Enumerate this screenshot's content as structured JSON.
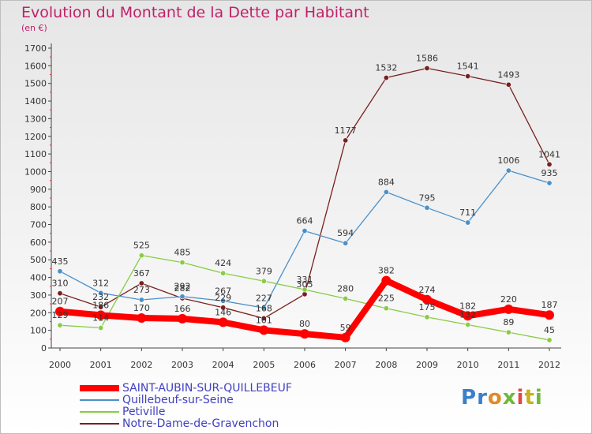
{
  "title": "Evolution du Montant de la Dette par Habitant",
  "subtitle": "(en €)",
  "logo_text": "Proxiti",
  "chart_data": {
    "type": "line",
    "title": "Evolution du Montant de la Dette par Habitant",
    "subtitle": "(en €)",
    "x": [
      "2000",
      "2001",
      "2002",
      "2003",
      "2004",
      "2005",
      "2006",
      "2007",
      "2008",
      "2009",
      "2010",
      "2011",
      "2012"
    ],
    "ylim": [
      0,
      1700
    ],
    "yticks": [
      0,
      100,
      200,
      300,
      400,
      500,
      600,
      700,
      800,
      900,
      1000,
      1100,
      1200,
      1300,
      1400,
      1500,
      1600,
      1700
    ],
    "grid": false,
    "legend_position": "bottom-left",
    "series": [
      {
        "name": "SAINT-AUBIN-SUR-QUILLEBEUF",
        "color": "#ff0000",
        "values": [
          207,
          186,
          170,
          166,
          146,
          101,
          80,
          59,
          382,
          274,
          182,
          220,
          187
        ]
      },
      {
        "name": "Quillebeuf-sur-Seine",
        "color": "#4a90c8",
        "values": [
          435,
          312,
          273,
          292,
          267,
          227,
          664,
          594,
          884,
          795,
          711,
          1006,
          935
        ]
      },
      {
        "name": "Petiville",
        "color": "#88cc44",
        "values": [
          129,
          114,
          525,
          485,
          424,
          379,
          331,
          280,
          225,
          175,
          132,
          89,
          45
        ]
      },
      {
        "name": "Notre-Dame-de-Gravenchon",
        "color": "#7a1f1f",
        "values": [
          310,
          232,
          367,
          282,
          229,
          168,
          305,
          1177,
          1532,
          1586,
          1541,
          1493,
          1041
        ]
      }
    ]
  }
}
